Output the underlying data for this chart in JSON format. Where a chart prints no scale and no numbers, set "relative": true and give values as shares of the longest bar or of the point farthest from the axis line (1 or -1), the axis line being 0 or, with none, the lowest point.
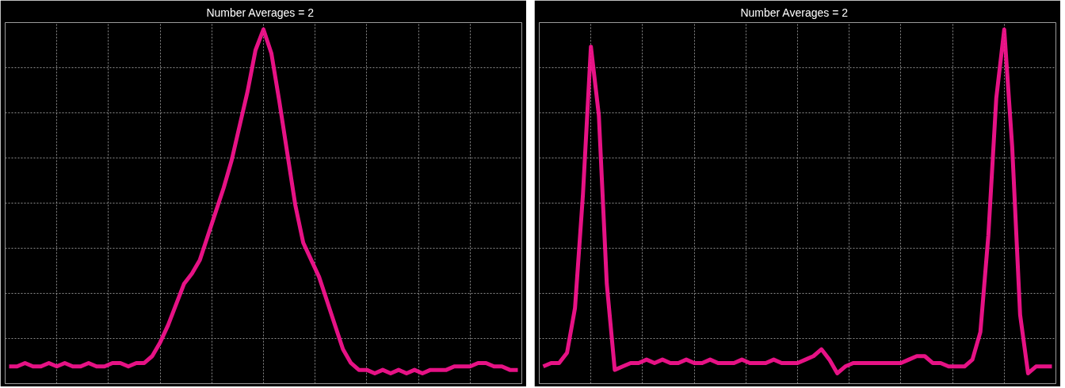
{
  "chart_data": [
    {
      "type": "line",
      "title": "Number Averages =   2",
      "relative": true,
      "grid": true,
      "categories": [
        null,
        null,
        null,
        null,
        null,
        null,
        null,
        null,
        null,
        null,
        null,
        null,
        null,
        null,
        null,
        null,
        null,
        null,
        null,
        null,
        null,
        null,
        null,
        null,
        null,
        null,
        null,
        null,
        null,
        null,
        null,
        null,
        null,
        null,
        null,
        null,
        null,
        null,
        null,
        null,
        null,
        null,
        null,
        null,
        null,
        null,
        null,
        null,
        null,
        null,
        null,
        null,
        null,
        null,
        null,
        null,
        null,
        null,
        null,
        null,
        null,
        null,
        null,
        null,
        null
      ],
      "series": [
        {
          "color": "#ff1493",
          "values": [
            0.02,
            0.02,
            0.03,
            0.02,
            0.02,
            0.03,
            0.02,
            0.03,
            0.02,
            0.02,
            0.03,
            0.02,
            0.02,
            0.03,
            0.03,
            0.02,
            0.03,
            0.03,
            0.05,
            0.09,
            0.14,
            0.2,
            0.26,
            0.29,
            0.33,
            0.4,
            0.47,
            0.54,
            0.62,
            0.72,
            0.82,
            0.94,
            1,
            0.93,
            0.79,
            0.64,
            0.49,
            0.38,
            0.33,
            0.28,
            0.21,
            0.14,
            0.07,
            0.03,
            0.01,
            0.01,
            0,
            0.01,
            0,
            0.01,
            0,
            0.01,
            0,
            0.01,
            0.01,
            0.01,
            0.02,
            0.02,
            0.02,
            0.03,
            0.03,
            0.02,
            0.02,
            0.01,
            0.01
          ]
        }
      ]
    },
    {
      "type": "line",
      "title": "Number Averages =   2",
      "relative": true,
      "grid": true,
      "categories": [
        null,
        null,
        null,
        null,
        null,
        null,
        null,
        null,
        null,
        null,
        null,
        null,
        null,
        null,
        null,
        null,
        null,
        null,
        null,
        null,
        null,
        null,
        null,
        null,
        null,
        null,
        null,
        null,
        null,
        null,
        null,
        null,
        null,
        null,
        null,
        null,
        null,
        null,
        null,
        null,
        null,
        null,
        null,
        null,
        null,
        null,
        null,
        null,
        null,
        null,
        null,
        null,
        null,
        null,
        null,
        null,
        null,
        null,
        null,
        null,
        null,
        null,
        null,
        null,
        null
      ],
      "series": [
        {
          "color": "#ff1493",
          "values": [
            0.02,
            0.03,
            0.03,
            0.06,
            0.19,
            0.52,
            0.95,
            0.75,
            0.26,
            0.01,
            0.02,
            0.03,
            0.03,
            0.04,
            0.03,
            0.04,
            0.03,
            0.03,
            0.04,
            0.03,
            0.03,
            0.04,
            0.03,
            0.03,
            0.03,
            0.04,
            0.03,
            0.03,
            0.03,
            0.04,
            0.03,
            0.03,
            0.03,
            0.04,
            0.05,
            0.07,
            0.04,
            0,
            0.02,
            0.03,
            0.03,
            0.03,
            0.03,
            0.03,
            0.03,
            0.03,
            0.04,
            0.05,
            0.05,
            0.03,
            0.03,
            0.02,
            0.02,
            0.02,
            0.04,
            0.12,
            0.4,
            0.8,
            1,
            0.66,
            0.17,
            0,
            0.02,
            0.02,
            0.02
          ]
        }
      ]
    }
  ]
}
